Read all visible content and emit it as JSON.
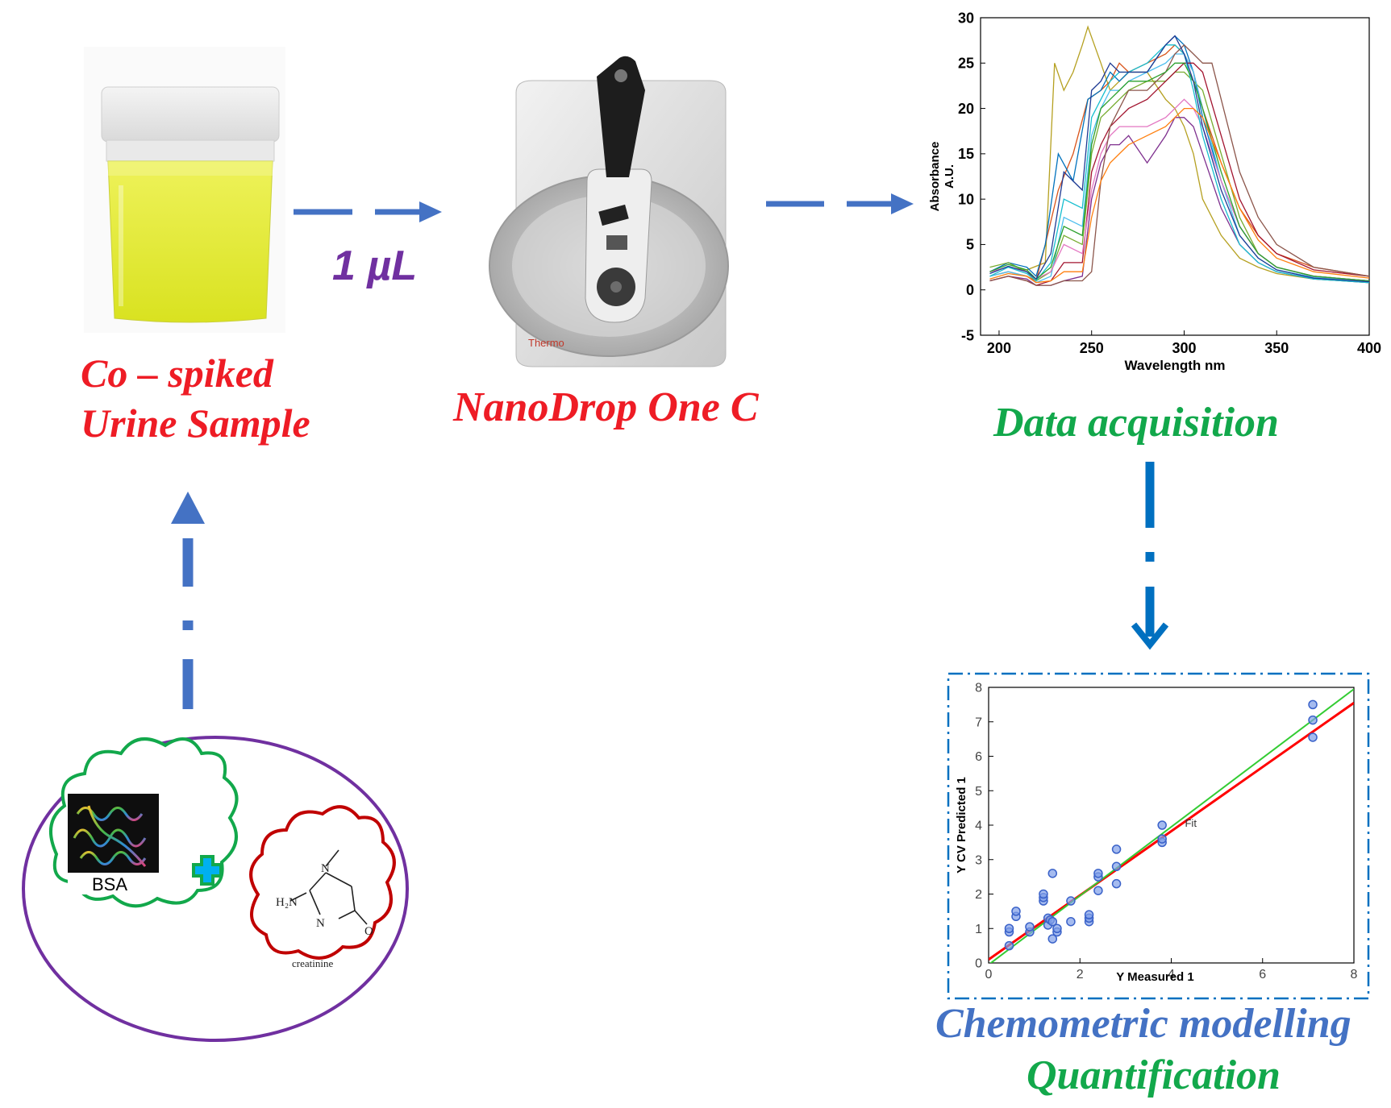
{
  "labels": {
    "volume": "1 µL",
    "sample_line1": "Co – spiked",
    "sample_line2": "Urine Sample",
    "instrument": "NanoDrop One C",
    "acquisition": "Data acquisition",
    "modelling": "Chemometric modelling",
    "quantification": "Quantification",
    "bsa": "BSA",
    "creatinine": "creatinine",
    "h2n": "H₂N",
    "n_label": "N",
    "o_label": "O",
    "brand": "Thermo"
  },
  "colors": {
    "label_red": "#ee1c25",
    "label_green": "#12a84b",
    "label_blue": "#4472c4",
    "volume_purple": "#7030a0",
    "arrow_blue": "#4472c4",
    "arrow_dark_blue": "#0070c0",
    "ellipse_purple": "#7030a0",
    "cloud_green": "#12a84b",
    "cloud_red": "#c00000",
    "plus_fill": "#00b0f0",
    "plus_stroke": "#12a84b",
    "urine_yellow": "#e4ec2a"
  },
  "icons": {
    "sample_cup": "urine-sample-cup",
    "spectrophotometer": "nanodrop-spectrophotometer",
    "plus": "plus-icon"
  },
  "chart_data": [
    {
      "type": "line",
      "xlabel": "Wavelength nm",
      "ylabel": "Absorbance A.U.",
      "xlim": [
        190,
        400
      ],
      "ylim": [
        -5,
        30
      ],
      "xticks": [
        200,
        250,
        300,
        350,
        400
      ],
      "yticks": [
        -5,
        0,
        5,
        10,
        15,
        20,
        25,
        30
      ],
      "grid": false,
      "series": [
        {
          "color": "#b5a020",
          "x": [
            195,
            205,
            215,
            225,
            230,
            235,
            240,
            245,
            248,
            255,
            260,
            265,
            270,
            280,
            290,
            295,
            300,
            305,
            310,
            320,
            330,
            340,
            350,
            370,
            400
          ],
          "y": [
            2,
            2.5,
            2.2,
            3,
            25,
            22,
            24,
            27,
            29,
            25,
            22,
            23,
            24,
            24,
            21,
            20,
            18,
            15,
            10,
            6,
            3.5,
            2.5,
            1.8,
            1.2,
            0.8
          ]
        },
        {
          "color": "#d95319",
          "x": [
            195,
            205,
            215,
            220,
            225,
            232,
            240,
            248,
            255,
            260,
            265,
            270,
            280,
            290,
            295,
            300,
            305,
            310,
            320,
            330,
            340,
            350,
            370,
            400
          ],
          "y": [
            1.5,
            2,
            1.5,
            1,
            5,
            11,
            15,
            21,
            22,
            23,
            25,
            24,
            25,
            26,
            27,
            26,
            24,
            20,
            14,
            9,
            6,
            4,
            2.5,
            1.5
          ]
        },
        {
          "color": "#0072bd",
          "x": [
            195,
            205,
            215,
            220,
            225,
            232,
            240,
            248,
            255,
            260,
            265,
            270,
            280,
            290,
            295,
            300,
            305,
            310,
            320,
            330,
            340,
            350,
            370,
            400
          ],
          "y": [
            2,
            3,
            2.5,
            1.5,
            5,
            15,
            12,
            21,
            22,
            24,
            23,
            24,
            24,
            27,
            28,
            27,
            24,
            19,
            12,
            7,
            4,
            2.5,
            1.5,
            1
          ]
        },
        {
          "color": "#7e2f8e",
          "x": [
            195,
            205,
            215,
            220,
            228,
            235,
            245,
            250,
            255,
            260,
            265,
            270,
            280,
            290,
            295,
            300,
            305,
            310,
            320,
            330,
            340,
            350,
            370,
            400
          ],
          "y": [
            1,
            1.5,
            1.2,
            0.5,
            0.5,
            1,
            1.5,
            10,
            14,
            16,
            16,
            17,
            14,
            17,
            19,
            19,
            18,
            15,
            9,
            5,
            3,
            2,
            1.2,
            0.8
          ]
        },
        {
          "color": "#77ac30",
          "x": [
            195,
            205,
            215,
            220,
            228,
            235,
            245,
            250,
            255,
            260,
            265,
            270,
            280,
            290,
            295,
            300,
            305,
            310,
            320,
            330,
            340,
            350,
            370,
            400
          ],
          "y": [
            2.5,
            3,
            2,
            1,
            2,
            6,
            5,
            15,
            19,
            20,
            21,
            22,
            23,
            23,
            24,
            24,
            23,
            22,
            15,
            8,
            4,
            2.5,
            1.5,
            1
          ]
        },
        {
          "color": "#4dbeee",
          "x": [
            195,
            205,
            215,
            220,
            228,
            235,
            245,
            250,
            255,
            260,
            265,
            270,
            280,
            290,
            295,
            300,
            305,
            310,
            320,
            330,
            340,
            350,
            370,
            400
          ],
          "y": [
            1.5,
            2,
            1.5,
            0.8,
            1.5,
            8,
            7,
            17,
            20,
            22,
            22,
            23,
            24,
            25,
            26,
            26,
            24,
            20,
            12,
            6,
            3.5,
            2.2,
            1.4,
            1
          ]
        },
        {
          "color": "#a2142f",
          "x": [
            195,
            205,
            215,
            220,
            228,
            235,
            245,
            250,
            255,
            260,
            265,
            270,
            280,
            290,
            295,
            300,
            305,
            310,
            320,
            330,
            340,
            350,
            370,
            400
          ],
          "y": [
            1,
            1.5,
            1,
            0.5,
            1,
            3,
            3,
            13,
            16,
            18,
            19,
            20,
            21,
            23,
            24,
            25,
            25,
            24,
            17,
            10,
            6,
            4,
            2.2,
            1.5
          ]
        },
        {
          "color": "#e377c2",
          "x": [
            195,
            205,
            215,
            220,
            228,
            235,
            245,
            250,
            255,
            260,
            265,
            270,
            280,
            290,
            295,
            300,
            305,
            310,
            320,
            330,
            340,
            350,
            370,
            400
          ],
          "y": [
            2,
            2.5,
            2,
            1.2,
            2,
            5,
            4,
            11,
            15,
            17,
            18,
            18,
            18,
            19,
            20,
            21,
            20,
            18,
            12,
            7,
            4,
            2.5,
            1.5,
            1
          ]
        },
        {
          "color": "#17becf",
          "x": [
            195,
            205,
            215,
            220,
            228,
            235,
            245,
            250,
            255,
            260,
            265,
            270,
            280,
            290,
            295,
            300,
            305,
            310,
            320,
            330,
            340,
            350,
            370,
            400
          ],
          "y": [
            1.5,
            2.5,
            1.8,
            1,
            3,
            10,
            9,
            19,
            21,
            23,
            24,
            24,
            25,
            27,
            27,
            26,
            22,
            17,
            10,
            5,
            3,
            2,
            1.2,
            0.8
          ]
        },
        {
          "color": "#8c564b",
          "x": [
            195,
            205,
            215,
            220,
            228,
            235,
            245,
            250,
            255,
            260,
            265,
            270,
            280,
            290,
            295,
            300,
            305,
            310,
            315,
            320,
            330,
            340,
            350,
            370,
            400
          ],
          "y": [
            1,
            1.5,
            1,
            0.5,
            0.5,
            1,
            1,
            2,
            12,
            18,
            20,
            22,
            22,
            24,
            26,
            27,
            26,
            25,
            25,
            21,
            13,
            8,
            5,
            2.5,
            1.5
          ]
        },
        {
          "color": "#2ca02c",
          "x": [
            195,
            205,
            215,
            220,
            228,
            235,
            245,
            250,
            255,
            260,
            265,
            270,
            280,
            290,
            295,
            300,
            305,
            310,
            320,
            330,
            340,
            350,
            370,
            400
          ],
          "y": [
            2,
            2.8,
            2.2,
            1.2,
            2.5,
            7,
            6,
            16,
            20,
            21,
            22,
            23,
            23,
            24,
            25,
            25,
            23,
            20,
            13,
            7,
            4,
            2.5,
            1.5,
            1
          ]
        },
        {
          "color": "#1f3a93",
          "x": [
            195,
            205,
            215,
            220,
            228,
            235,
            245,
            250,
            255,
            260,
            265,
            270,
            280,
            290,
            295,
            300,
            305,
            310,
            320,
            330,
            340,
            350,
            370,
            400
          ],
          "y": [
            1.8,
            2.6,
            2,
            1.2,
            4,
            13,
            11,
            22,
            23,
            25,
            24,
            24,
            24,
            27,
            28,
            26,
            23,
            18,
            11,
            6,
            3.5,
            2.2,
            1.3,
            0.9
          ]
        },
        {
          "color": "#ff7f0e",
          "x": [
            195,
            205,
            215,
            220,
            228,
            235,
            245,
            250,
            255,
            260,
            265,
            270,
            280,
            290,
            295,
            300,
            305,
            310,
            320,
            330,
            340,
            350,
            370,
            400
          ],
          "y": [
            1.2,
            1.8,
            1.5,
            0.8,
            1,
            2,
            2,
            8,
            12,
            14,
            15,
            16,
            17,
            18,
            19,
            20,
            20,
            19,
            14,
            9,
            5.5,
            3.5,
            2,
            1.3
          ]
        }
      ]
    },
    {
      "type": "scatter",
      "xlabel": "Y Measured 1",
      "ylabel": "Y CV Predicted 1",
      "xlim": [
        0,
        8
      ],
      "ylim": [
        0,
        8
      ],
      "xticks": [
        0,
        2,
        4,
        6,
        8
      ],
      "yticks": [
        0,
        1,
        2,
        3,
        4,
        5,
        6,
        7,
        8
      ],
      "grid": false,
      "annotation": "Fit",
      "points": [
        {
          "x": 0.45,
          "y": 0.5
        },
        {
          "x": 0.45,
          "y": 0.9
        },
        {
          "x": 0.45,
          "y": 1.0
        },
        {
          "x": 0.6,
          "y": 1.35
        },
        {
          "x": 0.6,
          "y": 1.5
        },
        {
          "x": 0.9,
          "y": 0.9
        },
        {
          "x": 0.9,
          "y": 1.05
        },
        {
          "x": 1.2,
          "y": 1.8
        },
        {
          "x": 1.2,
          "y": 1.9
        },
        {
          "x": 1.2,
          "y": 2.0
        },
        {
          "x": 1.3,
          "y": 1.1
        },
        {
          "x": 1.3,
          "y": 1.3
        },
        {
          "x": 1.35,
          "y": 1.25
        },
        {
          "x": 1.4,
          "y": 1.2
        },
        {
          "x": 1.4,
          "y": 0.7
        },
        {
          "x": 1.4,
          "y": 2.6
        },
        {
          "x": 1.5,
          "y": 0.9
        },
        {
          "x": 1.5,
          "y": 1.0
        },
        {
          "x": 1.8,
          "y": 1.2
        },
        {
          "x": 1.8,
          "y": 1.8
        },
        {
          "x": 2.2,
          "y": 1.2
        },
        {
          "x": 2.2,
          "y": 1.3
        },
        {
          "x": 2.2,
          "y": 1.4
        },
        {
          "x": 2.4,
          "y": 2.1
        },
        {
          "x": 2.4,
          "y": 2.5
        },
        {
          "x": 2.4,
          "y": 2.6
        },
        {
          "x": 2.8,
          "y": 2.3
        },
        {
          "x": 2.8,
          "y": 2.8
        },
        {
          "x": 2.8,
          "y": 3.3
        },
        {
          "x": 3.8,
          "y": 3.5
        },
        {
          "x": 3.8,
          "y": 3.6
        },
        {
          "x": 3.8,
          "y": 4.0
        },
        {
          "x": 7.1,
          "y": 6.55
        },
        {
          "x": 7.1,
          "y": 7.05
        },
        {
          "x": 7.1,
          "y": 7.5
        }
      ],
      "series": [
        {
          "color": "#ff0000",
          "x": [
            0,
            8
          ],
          "y": [
            0.1,
            7.55
          ]
        },
        {
          "color": "#33cc33",
          "x": [
            0,
            8
          ],
          "y": [
            -0.05,
            7.95
          ]
        }
      ]
    }
  ]
}
